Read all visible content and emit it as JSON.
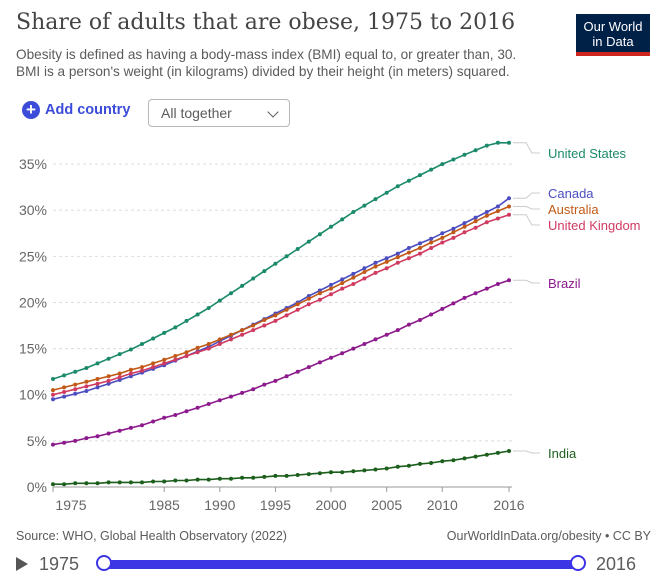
{
  "header": {
    "title": "Share of adults that are obese, 1975 to 2016",
    "subtitle": "Obesity is defined as having a body-mass index (BMI) equal to, or greater than, 30. BMI is a person's weight (in kilograms) divided by their height (in meters) squared.",
    "logo_line1": "Our World",
    "logo_line2": "in Data"
  },
  "controls": {
    "add_country_label": "Add country",
    "add_icon": "plus-circle-icon",
    "select_value": "All together",
    "select_icon": "chevron-down-icon"
  },
  "footer": {
    "source": "Source: WHO, Global Health Observatory (2022)",
    "link": "OurWorldInData.org/obesity • CC BY"
  },
  "timeline": {
    "start_year": "1975",
    "end_year": "2016",
    "play_icon": "play-icon"
  },
  "colors": {
    "accent": "#3c4cd9",
    "logo_bg": "#002147",
    "logo_red": "#ce261e"
  },
  "chart_data": {
    "type": "line",
    "title": "Share of adults that are obese, 1975 to 2016",
    "x_start": 1975,
    "x_end": 2016,
    "xlim": [
      1975,
      2016
    ],
    "ylim": [
      0,
      37.5
    ],
    "x_ticks": [
      1975,
      1985,
      1990,
      1995,
      2000,
      2005,
      2010,
      2016
    ],
    "x_tick_labels": [
      "1975",
      "1985",
      "1990",
      "1995",
      "2000",
      "2005",
      "2010",
      "2016"
    ],
    "y_ticks": [
      0,
      5,
      10,
      15,
      20,
      25,
      30,
      35
    ],
    "y_tick_labels": [
      "0%",
      "5%",
      "10%",
      "15%",
      "20%",
      "25%",
      "30%",
      "35%"
    ],
    "grid": "horizontal dashed",
    "legend": "right, end-of-line labels",
    "series": [
      {
        "name": "United States",
        "color": "#1b8a6b",
        "values": [
          11.7,
          12.1,
          12.5,
          12.9,
          13.4,
          13.9,
          14.4,
          14.9,
          15.5,
          16.1,
          16.7,
          17.3,
          18.0,
          18.7,
          19.4,
          20.2,
          21.0,
          21.8,
          22.6,
          23.4,
          24.2,
          25.0,
          25.8,
          26.6,
          27.4,
          28.2,
          29.0,
          29.8,
          30.5,
          31.2,
          31.9,
          32.6,
          33.2,
          33.8,
          34.4,
          35.0,
          35.5,
          36.0,
          36.5,
          37.0,
          37.3,
          37.3
        ]
      },
      {
        "name": "Canada",
        "color": "#4c4dbf",
        "values": [
          9.5,
          9.8,
          10.1,
          10.4,
          10.8,
          11.2,
          11.6,
          12.0,
          12.4,
          12.8,
          13.2,
          13.7,
          14.2,
          14.7,
          15.2,
          15.8,
          16.4,
          17.0,
          17.6,
          18.2,
          18.8,
          19.4,
          20.0,
          20.7,
          21.3,
          21.9,
          22.5,
          23.1,
          23.7,
          24.3,
          24.8,
          25.3,
          25.9,
          26.4,
          26.9,
          27.5,
          28.0,
          28.6,
          29.2,
          29.8,
          30.4,
          31.3
        ]
      },
      {
        "name": "Australia",
        "color": "#c05917",
        "values": [
          10.5,
          10.8,
          11.1,
          11.4,
          11.7,
          12.0,
          12.3,
          12.7,
          13.0,
          13.4,
          13.8,
          14.2,
          14.6,
          15.1,
          15.5,
          16.0,
          16.5,
          17.0,
          17.5,
          18.1,
          18.6,
          19.2,
          19.8,
          20.4,
          21.0,
          21.5,
          22.1,
          22.7,
          23.3,
          23.9,
          24.4,
          24.9,
          25.4,
          25.9,
          26.5,
          27.0,
          27.6,
          28.2,
          28.8,
          29.4,
          29.9,
          30.4
        ]
      },
      {
        "name": "United Kingdom",
        "color": "#d03a61",
        "values": [
          10.0,
          10.3,
          10.6,
          10.9,
          11.2,
          11.5,
          11.9,
          12.3,
          12.6,
          13.0,
          13.4,
          13.8,
          14.2,
          14.6,
          15.0,
          15.5,
          16.0,
          16.5,
          17.0,
          17.5,
          18.0,
          18.6,
          19.2,
          19.8,
          20.3,
          20.9,
          21.5,
          22.0,
          22.6,
          23.2,
          23.7,
          24.3,
          24.8,
          25.3,
          25.9,
          26.5,
          27.0,
          27.6,
          28.1,
          28.7,
          29.1,
          29.5
        ]
      },
      {
        "name": "Brazil",
        "color": "#8c1a8c",
        "values": [
          4.6,
          4.8,
          5.0,
          5.3,
          5.5,
          5.8,
          6.1,
          6.4,
          6.7,
          7.1,
          7.5,
          7.8,
          8.2,
          8.6,
          9.0,
          9.4,
          9.8,
          10.2,
          10.6,
          11.1,
          11.5,
          12.0,
          12.5,
          13.0,
          13.5,
          14.0,
          14.5,
          15.0,
          15.5,
          16.0,
          16.5,
          17.0,
          17.6,
          18.1,
          18.7,
          19.3,
          19.9,
          20.5,
          21.0,
          21.5,
          22.0,
          22.4
        ]
      },
      {
        "name": "India",
        "color": "#1c5e1c",
        "values": [
          0.3,
          0.3,
          0.4,
          0.4,
          0.4,
          0.5,
          0.5,
          0.5,
          0.5,
          0.6,
          0.6,
          0.7,
          0.7,
          0.8,
          0.8,
          0.9,
          0.9,
          1.0,
          1.0,
          1.1,
          1.2,
          1.2,
          1.3,
          1.4,
          1.5,
          1.6,
          1.6,
          1.7,
          1.8,
          1.9,
          2.0,
          2.2,
          2.3,
          2.5,
          2.6,
          2.8,
          2.9,
          3.1,
          3.3,
          3.5,
          3.7,
          3.9
        ]
      }
    ]
  }
}
